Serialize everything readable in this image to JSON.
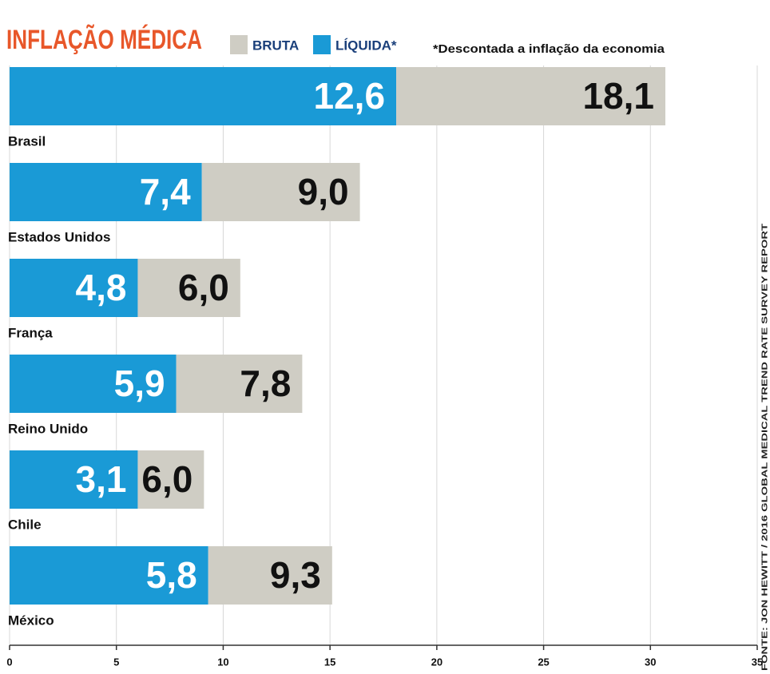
{
  "chart_data": {
    "type": "bar",
    "title": "INFLAÇÃO MÉDICA",
    "note": "*Descontada a inflação da economia",
    "source": "FONTE: JON HEWITT / 2016 GLOBAL MEDICAL TREND RATE SURVEY REPORT",
    "categories": [
      "Brasil",
      "Estados Unidos",
      "França",
      "Reino Unido",
      "Chile",
      "México"
    ],
    "series": [
      {
        "name": "BRUTA",
        "color": "#cfcdc4",
        "values": [
          18.1,
          9.0,
          6.0,
          7.8,
          6.0,
          9.3
        ],
        "value_labels": [
          "18,1",
          "9,0",
          "6,0",
          "7,8",
          "6,0",
          "9,3"
        ]
      },
      {
        "name": "LÍQUIDA*",
        "color": "#1a9ad6",
        "values": [
          12.6,
          7.4,
          4.8,
          5.9,
          3.1,
          5.8
        ],
        "value_labels": [
          "12,6",
          "7,4",
          "4,8",
          "5,9",
          "3,1",
          "5,8"
        ]
      }
    ],
    "xlim": [
      0,
      35
    ],
    "xticks": [
      0,
      5,
      10,
      15,
      20,
      25,
      30,
      35
    ],
    "grid": true,
    "stacked": true
  }
}
